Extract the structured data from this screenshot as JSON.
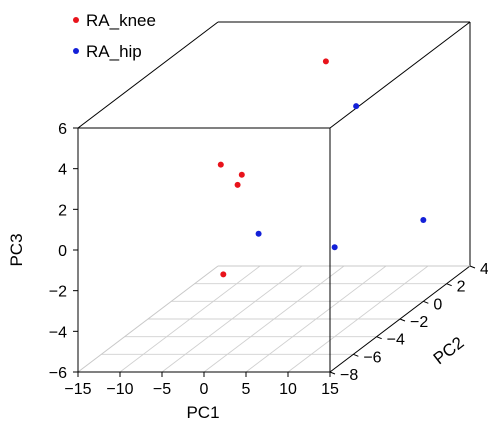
{
  "chart_data": {
    "type": "scatter",
    "projection": "3d",
    "x_axis": {
      "label": "PC1",
      "range": [
        -15,
        15
      ],
      "ticks": [
        -15,
        -10,
        -5,
        0,
        5,
        10,
        15
      ]
    },
    "y_axis": {
      "label": "PC2",
      "range": [
        -8,
        4
      ],
      "ticks": [
        -8,
        -6,
        -4,
        -2,
        0,
        2,
        4
      ]
    },
    "z_axis": {
      "label": "PC3",
      "range": [
        -6,
        6
      ],
      "ticks": [
        -6,
        -4,
        -2,
        0,
        2,
        4,
        6
      ]
    },
    "legend": {
      "placement": "top-left"
    },
    "floor_grid": true,
    "series": [
      {
        "name": "RA_knee",
        "color": "#e8131b",
        "points": [
          {
            "x": 3.4,
            "y": 0.0,
            "z": 5.8
          },
          {
            "x": 2.0,
            "y": -8.0,
            "z": 4.2
          },
          {
            "x": 4.5,
            "y": -8.0,
            "z": 3.7
          },
          {
            "x": 4.0,
            "y": -8.0,
            "z": 3.2
          },
          {
            "x": 2.3,
            "y": -8.0,
            "z": -1.2
          }
        ]
      },
      {
        "name": "RA_hip",
        "color": "#1320d8",
        "points": [
          {
            "x": 7.0,
            "y": 0.0,
            "z": 3.6
          },
          {
            "x": 15.0,
            "y": 0.0,
            "z": -2.0
          },
          {
            "x": 10.0,
            "y": -4.0,
            "z": -1.6
          },
          {
            "x": 6.5,
            "y": -8.0,
            "z": 0.8
          }
        ]
      }
    ]
  }
}
